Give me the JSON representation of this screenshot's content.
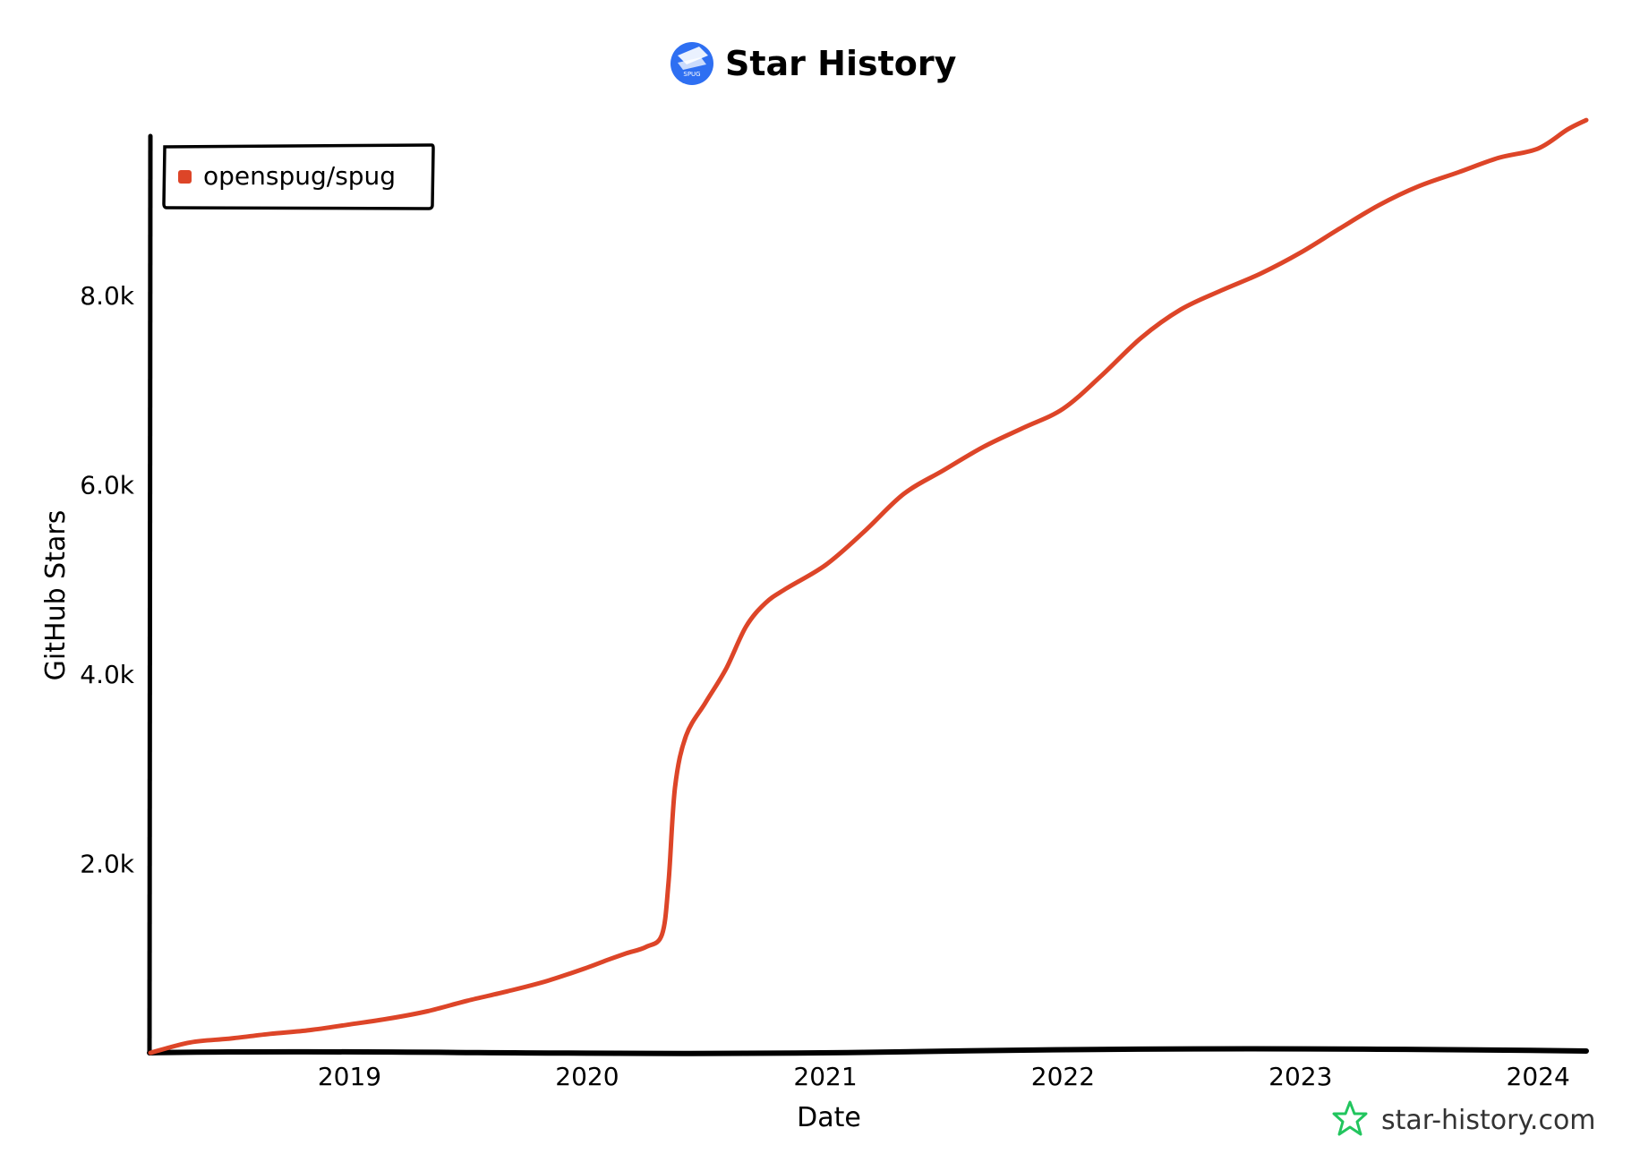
{
  "chart_data": {
    "type": "line",
    "title": "Star History",
    "xlabel": "Date",
    "ylabel": "GitHub Stars",
    "xlim": [
      "2018-03-01",
      "2024-03-15"
    ],
    "ylim": [
      0,
      9700
    ],
    "x_ticks": [
      "2019",
      "2020",
      "2021",
      "2022",
      "2023",
      "2024"
    ],
    "y_ticks": [
      "2.0k",
      "4.0k",
      "6.0k",
      "8.0k"
    ],
    "y_tick_values": [
      2000,
      4000,
      6000,
      8000
    ],
    "grid": false,
    "legend_position": "top-left",
    "series": [
      {
        "name": "openspug/spug",
        "color": "#dd4528",
        "x": [
          "2018-03-01",
          "2018-05-01",
          "2018-07-01",
          "2018-09-01",
          "2018-11-01",
          "2019-01-01",
          "2019-03-01",
          "2019-05-01",
          "2019-07-01",
          "2019-09-01",
          "2019-11-01",
          "2020-01-01",
          "2020-02-01",
          "2020-03-01",
          "2020-04-01",
          "2020-04-25",
          "2020-05-05",
          "2020-05-15",
          "2020-06-01",
          "2020-07-01",
          "2020-08-01",
          "2020-09-01",
          "2020-10-01",
          "2020-11-01",
          "2021-01-01",
          "2021-03-01",
          "2021-05-01",
          "2021-07-01",
          "2021-09-01",
          "2021-11-01",
          "2022-01-01",
          "2022-03-01",
          "2022-05-01",
          "2022-07-01",
          "2022-09-01",
          "2022-11-01",
          "2023-01-01",
          "2023-03-01",
          "2023-05-01",
          "2023-07-01",
          "2023-09-01",
          "2023-11-01",
          "2024-01-01",
          "2024-02-15",
          "2024-03-15"
        ],
        "values": [
          0,
          110,
          150,
          200,
          240,
          300,
          360,
          440,
          550,
          650,
          760,
          900,
          980,
          1050,
          1120,
          1250,
          1800,
          2800,
          3350,
          3700,
          4050,
          4500,
          4750,
          4900,
          5150,
          5500,
          5900,
          6150,
          6400,
          6600,
          6800,
          7150,
          7550,
          7850,
          8050,
          8230,
          8450,
          8700,
          8950,
          9150,
          9300,
          9450,
          9550,
          9750,
          9850
        ]
      }
    ]
  },
  "watermark": "star-history.com",
  "logo_text": "SPUG"
}
